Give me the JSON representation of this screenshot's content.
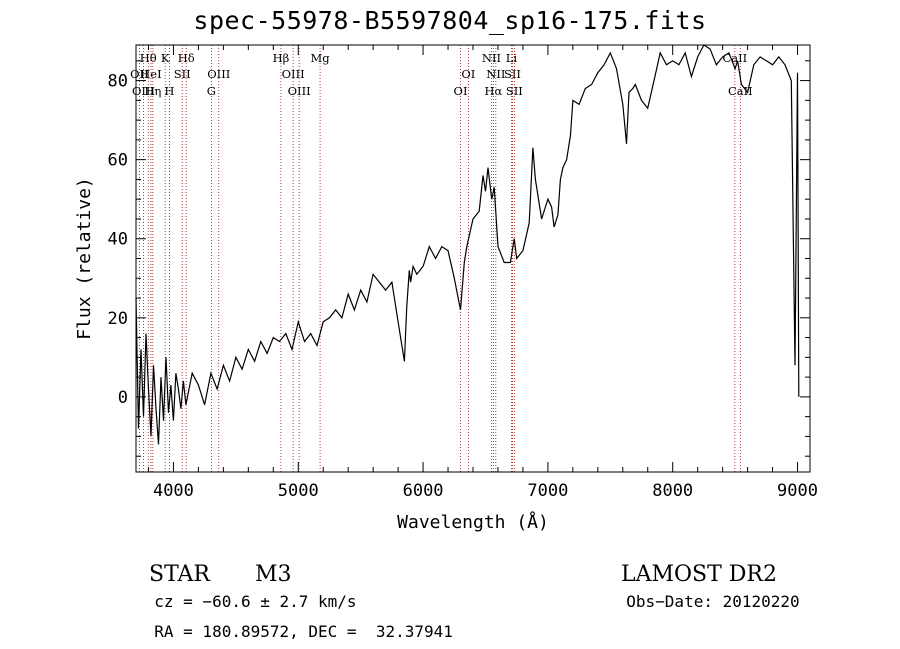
{
  "chart_data": {
    "type": "line",
    "title": "spec-55978-B5597804_sp16-175.fits",
    "xlabel": "Wavelength (Å)",
    "ylabel": "Flux (relative)",
    "xlim": [
      3700,
      9100
    ],
    "ylim": [
      -19,
      89
    ],
    "xticks": [
      4000,
      5000,
      6000,
      7000,
      8000,
      9000
    ],
    "yticks": [
      0,
      20,
      40,
      60,
      80
    ],
    "grid": false,
    "series": [
      {
        "x": [
          3700,
          3720,
          3740,
          3760,
          3780,
          3800,
          3820,
          3840,
          3860,
          3880,
          3900,
          3920,
          3940,
          3960,
          3980,
          4000,
          4020,
          4040,
          4060,
          4080,
          4100,
          4150,
          4200,
          4250,
          4300,
          4350,
          4400,
          4450,
          4500,
          4550,
          4600,
          4650,
          4700,
          4750,
          4800,
          4850,
          4900,
          4950,
          5000,
          5050,
          5100,
          5150,
          5200,
          5250,
          5300,
          5350,
          5400,
          5450,
          5500,
          5550,
          5600,
          5650,
          5700,
          5750,
          5800,
          5850,
          5870,
          5890,
          5900,
          5920,
          5950,
          6000,
          6050,
          6100,
          6150,
          6200,
          6250,
          6300,
          6330,
          6350,
          6400,
          6450,
          6480,
          6500,
          6520,
          6550,
          6570,
          6600,
          6650,
          6700,
          6730,
          6750,
          6800,
          6850,
          6880,
          6900,
          6950,
          7000,
          7030,
          7050,
          7080,
          7100,
          7120,
          7150,
          7180,
          7200,
          7250,
          7300,
          7350,
          7400,
          7450,
          7500,
          7550,
          7600,
          7630,
          7650,
          7680,
          7700,
          7750,
          7800,
          7850,
          7900,
          7950,
          8000,
          8050,
          8100,
          8150,
          8200,
          8250,
          8300,
          8350,
          8400,
          8450,
          8500,
          8520,
          8550,
          8600,
          8650,
          8700,
          8750,
          8800,
          8850,
          8900,
          8950,
          8980,
          9000,
          9010
        ],
        "y": [
          25,
          -8,
          12,
          -5,
          16,
          2,
          -10,
          8,
          -3,
          -12,
          5,
          -6,
          10,
          -4,
          3,
          -6,
          6,
          2,
          -3,
          4,
          -2,
          6,
          3,
          -2,
          6,
          2,
          8,
          4,
          10,
          7,
          12,
          9,
          14,
          11,
          15,
          14,
          16,
          12,
          19,
          14,
          16,
          13,
          19,
          20,
          22,
          20,
          26,
          22,
          27,
          24,
          31,
          29,
          27,
          29,
          19,
          9,
          23,
          32,
          29,
          33,
          31,
          33,
          38,
          35,
          38,
          37,
          30,
          22,
          34,
          38,
          45,
          47,
          56,
          52,
          58,
          50,
          53,
          38,
          34,
          34,
          40,
          35,
          37,
          44,
          63,
          55,
          45,
          50,
          48,
          43,
          46,
          55,
          58,
          60,
          66,
          75,
          74,
          78,
          79,
          82,
          84,
          87,
          83,
          74,
          64,
          77,
          78,
          79,
          75,
          73,
          80,
          87,
          84,
          85,
          84,
          87,
          81,
          86,
          92,
          88,
          84,
          86,
          87,
          83,
          85,
          79,
          77,
          84,
          86,
          85,
          84,
          86,
          84,
          80,
          8,
          82,
          0
        ]
      }
    ],
    "annotations": [
      {
        "label": "Hθ",
        "x": 3798,
        "row": 1
      },
      {
        "label": "OII",
        "x": 3727,
        "row": 2
      },
      {
        "label": "OIII",
        "x": 3760,
        "row": 3
      },
      {
        "label": "HeI",
        "x": 3820,
        "row": 2
      },
      {
        "label": "Hη",
        "x": 3835,
        "row": 3
      },
      {
        "label": "K",
        "x": 3934,
        "row": 1
      },
      {
        "label": "SII",
        "x": 4070,
        "row": 2
      },
      {
        "label": "H",
        "x": 3968,
        "row": 3
      },
      {
        "label": "Hδ",
        "x": 4102,
        "row": 1
      },
      {
        "label": "OIII",
        "x": 4363,
        "row": 2
      },
      {
        "label": "G",
        "x": 4304,
        "row": 3
      },
      {
        "label": "Hβ",
        "x": 4861,
        "row": 1
      },
      {
        "label": "OIII",
        "x": 4959,
        "row": 2
      },
      {
        "label": "OIII",
        "x": 5007,
        "row": 3
      },
      {
        "label": "Mg",
        "x": 5175,
        "row": 1
      },
      {
        "label": "OI",
        "x": 6363,
        "row": 2
      },
      {
        "label": "OI",
        "x": 6300,
        "row": 3
      },
      {
        "label": "NII",
        "x": 6548,
        "row": 1
      },
      {
        "label": "NII",
        "x": 6583,
        "row": 2
      },
      {
        "label": "Hα",
        "x": 6563,
        "row": 3
      },
      {
        "label": "Li",
        "x": 6708,
        "row": 1
      },
      {
        "label": "SII",
        "x": 6716,
        "row": 2
      },
      {
        "label": "SII",
        "x": 6731,
        "row": 3
      },
      {
        "label": "CaII",
        "x": 8498,
        "row": 1
      },
      {
        "label": "CaII",
        "x": 8542,
        "row": 3
      }
    ]
  },
  "info": {
    "object_class": "STAR",
    "subclass": "M3",
    "survey": "LAMOST DR2",
    "cz": "cz = −60.6 ± 2.7 km/s",
    "obs_date": "Obs−Date: 20120220",
    "coords": "RA = 180.89572, DEC =  32.37941"
  },
  "colors": {
    "spectrum": "#000000",
    "line_markers": "#a01010",
    "axes": "#000000"
  }
}
